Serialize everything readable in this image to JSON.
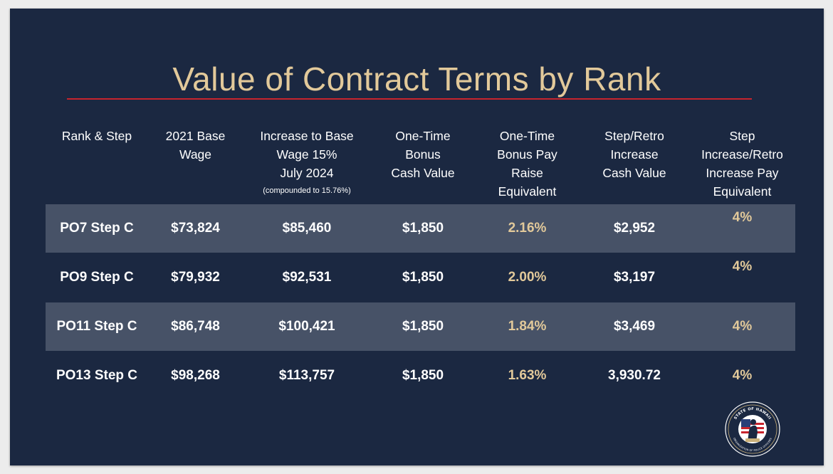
{
  "slide": {
    "title": "Value of Contract Terms by Rank",
    "headers": {
      "rank": "Rank & Step",
      "base_l1": "2021 Base",
      "base_l2": "Wage",
      "inc_l1": "Increase to Base",
      "inc_l2": "Wage 15%",
      "inc_l3": "July 2024",
      "inc_note": "(compounded to 15.76%)",
      "bonus_l1": "One-Time",
      "bonus_l2": "Bonus",
      "bonus_l3": "Cash Value",
      "raise_l1": "One-Time",
      "raise_l2": "Bonus Pay",
      "raise_l3": "Raise",
      "raise_l4": "Equivalent",
      "step_l1": "Step/Retro",
      "step_l2": "Increase",
      "step_l3": "Cash Value",
      "stepeq_l1": "Step",
      "stepeq_l2": "Increase/Retro",
      "stepeq_l3": "Increase Pay",
      "stepeq_l4": "Equivalent"
    },
    "rows": [
      {
        "rank": "PO7 Step C",
        "base": "$73,824",
        "increase": "$85,460",
        "bonus": "$1,850",
        "raise_pct": "2.16%",
        "step_cash": "$2,952",
        "step_pct": "4%"
      },
      {
        "rank": "PO9 Step C",
        "base": "$79,932",
        "increase": "$92,531",
        "bonus": "$1,850",
        "raise_pct": "2.00%",
        "step_cash": "$3,197",
        "step_pct": "4%"
      },
      {
        "rank": "PO11 Step C",
        "base": "$86,748",
        "increase": "$100,421",
        "bonus": "$1,850",
        "raise_pct": "1.84%",
        "step_cash": "$3,469",
        "step_pct": "4%"
      },
      {
        "rank": "PO13 Step C",
        "base": "$98,268",
        "increase": "$113,757",
        "bonus": "$1,850",
        "raise_pct": "1.63%",
        "step_cash": "3,930.72",
        "step_pct": "4%"
      }
    ],
    "seal": {
      "text_top": "STATE OF HAWAII",
      "text_bottom": "ORGANIZATION OF POLICE OFFICERS"
    },
    "colors": {
      "background": "#1b2841",
      "title": "#e2c99a",
      "rule": "#c8242d",
      "row_shade": "#475267",
      "accent_text": "#e2c99a"
    }
  }
}
